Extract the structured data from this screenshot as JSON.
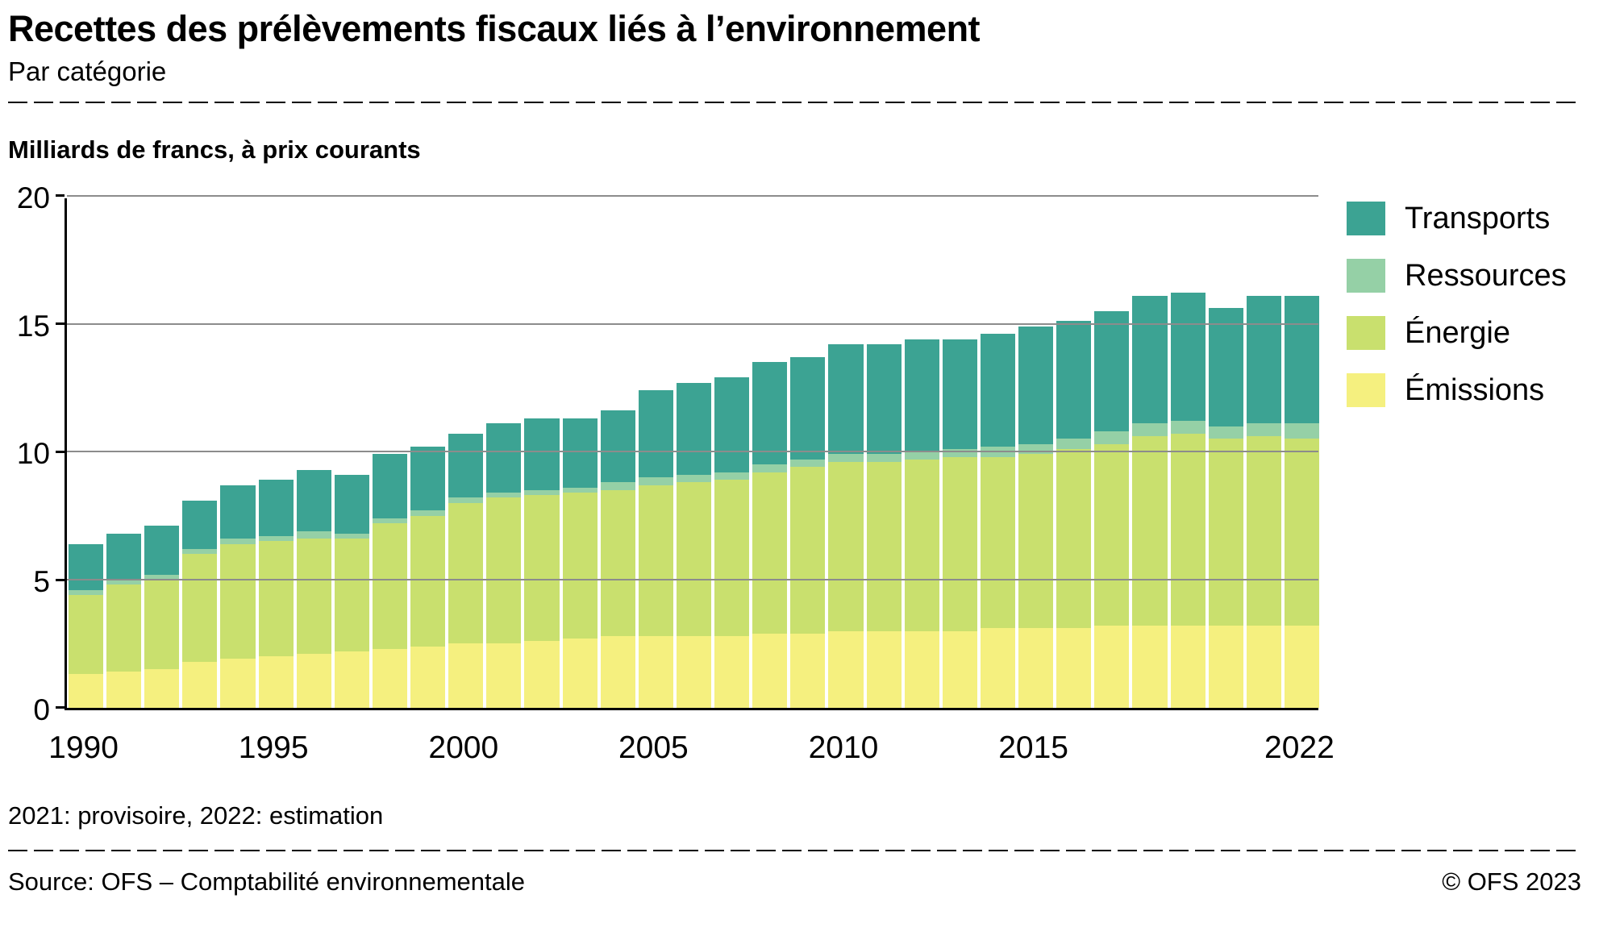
{
  "header": {
    "title": "Recettes des prélèvements fiscaux liés à l’environnement",
    "subtitle": "Par catégorie"
  },
  "chart_data": {
    "type": "bar",
    "stacked": true,
    "title": "Recettes des prélèvements fiscaux liés à l’environnement",
    "subtitle": "Par catégorie",
    "unit_label": "Milliards de francs, à prix courants",
    "ylim": [
      0,
      20
    ],
    "yticks": [
      0,
      5,
      10,
      15,
      20
    ],
    "grid_values": [
      5,
      10,
      15,
      20
    ],
    "grid": true,
    "legend_position": "right",
    "years": [
      1990,
      1991,
      1992,
      1993,
      1994,
      1995,
      1996,
      1997,
      1998,
      1999,
      2000,
      2001,
      2002,
      2003,
      2004,
      2005,
      2006,
      2007,
      2008,
      2009,
      2010,
      2011,
      2012,
      2013,
      2014,
      2015,
      2016,
      2017,
      2018,
      2019,
      2020,
      2021,
      2022
    ],
    "xtick_labels": [
      "1990",
      "1995",
      "2000",
      "2005",
      "2010",
      "2015",
      "2022"
    ],
    "series": [
      {
        "name": "Émissions",
        "color": "#f5f07f",
        "values": [
          1.3,
          1.4,
          1.5,
          1.8,
          1.9,
          2.0,
          2.1,
          2.2,
          2.3,
          2.4,
          2.5,
          2.5,
          2.6,
          2.7,
          2.8,
          2.8,
          2.8,
          2.8,
          2.9,
          2.9,
          3.0,
          3.0,
          3.0,
          3.0,
          3.1,
          3.1,
          3.1,
          3.2,
          3.2,
          3.2,
          3.2,
          3.2,
          3.2
        ]
      },
      {
        "name": "Énergie",
        "color": "#c9e06e",
        "values": [
          3.1,
          3.4,
          3.5,
          4.2,
          4.5,
          4.5,
          4.5,
          4.4,
          4.9,
          5.1,
          5.5,
          5.7,
          5.7,
          5.7,
          5.7,
          5.9,
          6.0,
          6.1,
          6.3,
          6.5,
          6.6,
          6.6,
          6.7,
          6.8,
          6.7,
          6.8,
          7.0,
          7.1,
          7.4,
          7.5,
          7.3,
          7.4,
          7.3
        ]
      },
      {
        "name": "Ressources",
        "color": "#95d0a6",
        "values": [
          0.2,
          0.2,
          0.2,
          0.2,
          0.2,
          0.2,
          0.3,
          0.2,
          0.2,
          0.2,
          0.2,
          0.2,
          0.2,
          0.2,
          0.3,
          0.3,
          0.3,
          0.3,
          0.3,
          0.3,
          0.3,
          0.3,
          0.3,
          0.3,
          0.4,
          0.4,
          0.4,
          0.5,
          0.5,
          0.5,
          0.5,
          0.5,
          0.6
        ]
      },
      {
        "name": "Transports",
        "color": "#3ca393",
        "values": [
          1.8,
          1.8,
          1.9,
          1.9,
          2.1,
          2.2,
          2.4,
          2.3,
          2.5,
          2.5,
          2.5,
          2.7,
          2.8,
          2.7,
          2.8,
          3.4,
          3.6,
          3.7,
          4.0,
          4.0,
          4.3,
          4.3,
          4.4,
          4.3,
          4.4,
          4.6,
          4.6,
          4.7,
          5.0,
          5.0,
          4.6,
          5.0,
          5.0
        ]
      }
    ],
    "legend": [
      {
        "label": "Transports",
        "color": "#3ca393"
      },
      {
        "label": "Ressources",
        "color": "#95d0a6"
      },
      {
        "label": "Énergie",
        "color": "#c9e06e"
      },
      {
        "label": "Émissions",
        "color": "#f5f07f"
      }
    ]
  },
  "footnote": "2021: provisoire, 2022: estimation",
  "footer": {
    "source": "Source: OFS – Comptabilité environnementale",
    "copyright": "© OFS 2023"
  }
}
